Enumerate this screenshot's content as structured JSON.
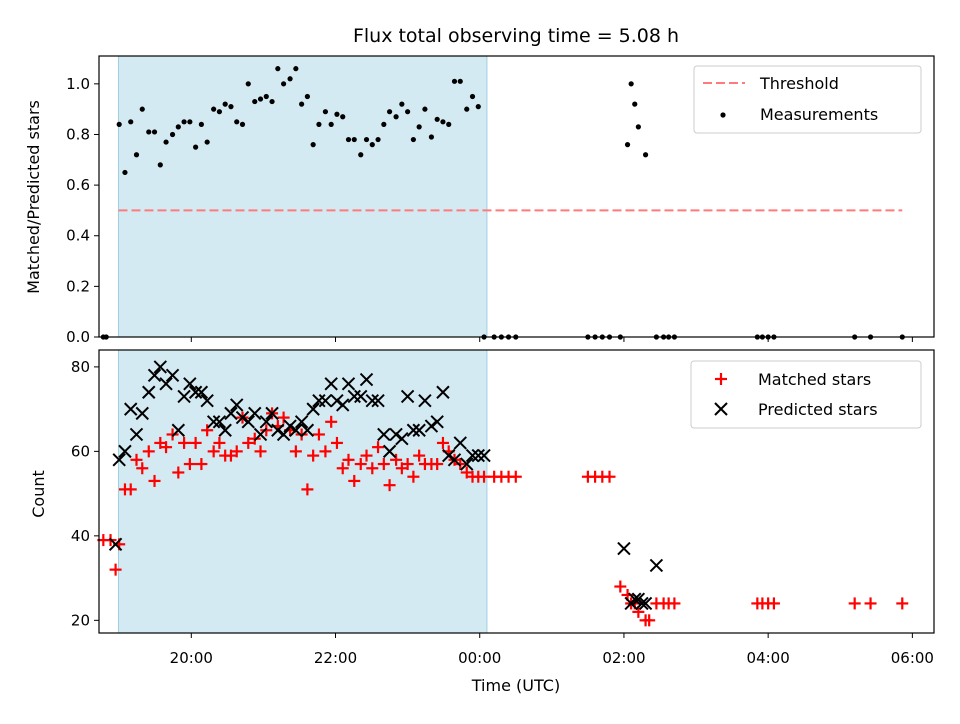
{
  "chart_data": [
    {
      "type": "scatter",
      "title": "Flux total observing time = 5.08 h",
      "ylabel": "Matched/Predicted stars",
      "xlabel": "",
      "x_unit": "hours (UTC, continuing past midnight)",
      "xlim": [
        18.72,
        30.3
      ],
      "ylim": [
        0.0,
        1.11
      ],
      "y_ticks": [
        "0.0",
        "0.2",
        "0.4",
        "0.6",
        "0.8",
        "1.0"
      ],
      "observing_window": [
        18.99,
        24.1
      ],
      "threshold": 0.5,
      "threshold_range": [
        18.99,
        29.86
      ],
      "legend": [
        "Threshold",
        "Measurements"
      ],
      "legend_position": "top-right",
      "colors": {
        "threshold": "#ff7b7b",
        "measurements": "#000000",
        "shading": "#add8e6"
      },
      "series": [
        {
          "name": "Measurements",
          "x": [
            18.78,
            18.82,
            19.0,
            19.08,
            19.16,
            19.24,
            19.32,
            19.41,
            19.49,
            19.57,
            19.65,
            19.74,
            19.82,
            19.9,
            19.98,
            20.06,
            20.14,
            20.22,
            20.31,
            20.39,
            20.47,
            20.55,
            20.63,
            20.71,
            20.79,
            20.88,
            20.96,
            21.04,
            21.12,
            21.2,
            21.28,
            21.37,
            21.45,
            21.53,
            21.61,
            21.69,
            21.77,
            21.86,
            21.94,
            22.02,
            22.1,
            22.18,
            22.26,
            22.35,
            22.43,
            22.51,
            22.59,
            22.67,
            22.75,
            22.84,
            22.92,
            23.0,
            23.08,
            23.16,
            23.24,
            23.33,
            23.41,
            23.49,
            23.57,
            23.65,
            23.73,
            23.82,
            23.9,
            23.98,
            24.06,
            24.2,
            24.3,
            24.4,
            24.5,
            25.5,
            25.6,
            25.7,
            25.8,
            25.95,
            26.05,
            26.1,
            26.15,
            26.2,
            26.3,
            26.45,
            26.55,
            26.62,
            26.7,
            27.85,
            27.92,
            28.0,
            28.08,
            29.2,
            29.42,
            29.86
          ],
          "y": [
            0.0,
            0.0,
            0.84,
            0.65,
            0.85,
            0.72,
            0.9,
            0.81,
            0.81,
            0.68,
            0.77,
            0.8,
            0.83,
            0.85,
            0.85,
            0.75,
            0.84,
            0.77,
            0.9,
            0.89,
            0.92,
            0.91,
            0.85,
            0.84,
            1.0,
            0.93,
            0.94,
            0.95,
            0.93,
            1.06,
            1.0,
            1.02,
            1.06,
            0.92,
            0.95,
            0.76,
            0.84,
            0.89,
            0.84,
            0.88,
            0.87,
            0.78,
            0.78,
            0.72,
            0.78,
            0.76,
            0.78,
            0.84,
            0.89,
            0.87,
            0.92,
            0.89,
            0.78,
            0.83,
            0.9,
            0.79,
            0.86,
            0.85,
            0.84,
            1.01,
            1.01,
            0.9,
            0.95,
            0.91,
            0.0,
            0.0,
            0.0,
            0.0,
            0.0,
            0.0,
            0.0,
            0.0,
            0.0,
            0.0,
            0.76,
            1.0,
            0.92,
            0.83,
            0.72,
            0.0,
            0.0,
            0.0,
            0.0,
            0.0,
            0.0,
            0.0,
            0.0,
            0.0,
            0.0,
            0.0
          ]
        }
      ]
    },
    {
      "type": "scatter",
      "title": "",
      "xlabel": "Time (UTC)",
      "ylabel": "Count",
      "xlim": [
        18.72,
        30.3
      ],
      "ylim": [
        17,
        84
      ],
      "x_ticks": [
        {
          "value": 20,
          "label": "20:00"
        },
        {
          "value": 22,
          "label": "22:00"
        },
        {
          "value": 24,
          "label": "00:00"
        },
        {
          "value": 26,
          "label": "02:00"
        },
        {
          "value": 28,
          "label": "04:00"
        },
        {
          "value": 30,
          "label": "06:00"
        }
      ],
      "y_ticks": [
        "20",
        "40",
        "60",
        "80"
      ],
      "observing_window": [
        18.99,
        24.1
      ],
      "legend": [
        "Matched stars",
        "Predicted stars"
      ],
      "legend_position": "top-right",
      "colors": {
        "matched": "#ff0000",
        "predicted": "#000000",
        "shading": "#add8e6"
      },
      "series": [
        {
          "name": "Matched stars",
          "x": [
            18.78,
            18.88,
            18.95,
            19.0,
            19.08,
            19.16,
            19.24,
            19.32,
            19.41,
            19.49,
            19.57,
            19.65,
            19.74,
            19.82,
            19.9,
            19.98,
            20.06,
            20.14,
            20.22,
            20.31,
            20.39,
            20.47,
            20.55,
            20.63,
            20.71,
            20.79,
            20.88,
            20.96,
            21.04,
            21.12,
            21.2,
            21.28,
            21.37,
            21.45,
            21.53,
            21.61,
            21.69,
            21.77,
            21.86,
            21.94,
            22.02,
            22.1,
            22.18,
            22.26,
            22.35,
            22.43,
            22.51,
            22.59,
            22.67,
            22.75,
            22.84,
            22.92,
            23.0,
            23.08,
            23.16,
            23.24,
            23.33,
            23.41,
            23.49,
            23.57,
            23.65,
            23.73,
            23.82,
            23.9,
            23.98,
            24.06,
            24.2,
            24.3,
            24.4,
            24.5,
            25.5,
            25.6,
            25.7,
            25.8,
            25.95,
            26.05,
            26.1,
            26.15,
            26.2,
            26.3,
            26.35,
            26.45,
            26.55,
            26.62,
            26.7,
            27.85,
            27.92,
            28.0,
            28.08,
            29.2,
            29.42,
            29.86
          ],
          "y": [
            39,
            39,
            32,
            38,
            51,
            51,
            58,
            56,
            60,
            53,
            62,
            61,
            64,
            55,
            62,
            57,
            62,
            57,
            65,
            60,
            62,
            59,
            59,
            60,
            68,
            62,
            63,
            60,
            65,
            69,
            66,
            68,
            65,
            60,
            64,
            51,
            59,
            64,
            60,
            67,
            62,
            56,
            58,
            53,
            57,
            59,
            56,
            61,
            57,
            52,
            58,
            56,
            57,
            54,
            59,
            57,
            57,
            57,
            62,
            60,
            58,
            57,
            55,
            54,
            54,
            54,
            54,
            54,
            54,
            54,
            54,
            54,
            54,
            54,
            28,
            26,
            24,
            24,
            22,
            20,
            20,
            24,
            24,
            24,
            24,
            24,
            24,
            24,
            24,
            24,
            24,
            24
          ]
        },
        {
          "name": "Predicted stars",
          "x": [
            18.95,
            19.0,
            19.08,
            19.16,
            19.24,
            19.32,
            19.41,
            19.49,
            19.57,
            19.65,
            19.74,
            19.82,
            19.9,
            19.98,
            20.06,
            20.14,
            20.22,
            20.31,
            20.39,
            20.47,
            20.55,
            20.63,
            20.71,
            20.79,
            20.88,
            20.96,
            21.04,
            21.12,
            21.2,
            21.28,
            21.37,
            21.45,
            21.53,
            21.61,
            21.69,
            21.77,
            21.86,
            21.94,
            22.02,
            22.1,
            22.18,
            22.26,
            22.35,
            22.43,
            22.51,
            22.59,
            22.67,
            22.75,
            22.84,
            22.92,
            23.0,
            23.08,
            23.16,
            23.24,
            23.33,
            23.41,
            23.49,
            23.57,
            23.65,
            23.73,
            23.82,
            23.9,
            23.98,
            24.06,
            26.0,
            26.1,
            26.15,
            26.2,
            26.25,
            26.3,
            26.45
          ],
          "y": [
            38,
            58,
            60,
            70,
            64,
            69,
            74,
            78,
            80,
            76,
            78,
            65,
            73,
            76,
            74,
            74,
            72,
            67,
            67,
            65,
            69,
            71,
            68,
            67,
            69,
            64,
            67,
            69,
            65,
            64,
            66,
            65,
            67,
            65,
            70,
            72,
            72,
            76,
            72,
            71,
            76,
            73,
            73,
            77,
            72,
            72,
            64,
            60,
            64,
            63,
            73,
            65,
            65,
            72,
            66,
            67,
            74,
            59,
            58,
            62,
            57,
            59,
            59,
            59,
            37,
            24,
            25,
            25,
            24,
            24,
            33
          ]
        }
      ]
    }
  ]
}
